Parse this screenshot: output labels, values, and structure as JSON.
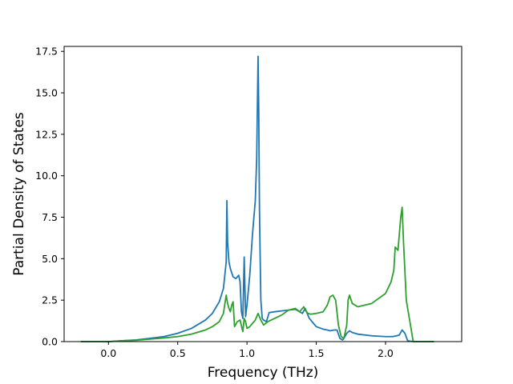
{
  "chart_data": {
    "type": "line",
    "title": "",
    "xlabel": "Frequency (THz)",
    "ylabel": "Partial Density of States",
    "xlim": [
      -0.32,
      2.55
    ],
    "ylim": [
      0,
      17.8
    ],
    "xticks": [
      0.0,
      0.5,
      1.0,
      1.5,
      2.0
    ],
    "xtick_labels": [
      "0.0",
      "0.5",
      "1.0",
      "1.5",
      "2.0"
    ],
    "yticks": [
      0.0,
      2.5,
      5.0,
      7.5,
      10.0,
      12.5,
      15.0,
      17.5
    ],
    "ytick_labels": [
      "0.0",
      "2.5",
      "5.0",
      "7.5",
      "10.0",
      "12.5",
      "15.0",
      "17.5"
    ],
    "grid": false,
    "legend": null,
    "series": [
      {
        "color": "#1f77b4",
        "x": [
          -0.2,
          0.0,
          0.1,
          0.2,
          0.3,
          0.4,
          0.5,
          0.6,
          0.7,
          0.75,
          0.8,
          0.83,
          0.85,
          0.855,
          0.86,
          0.87,
          0.88,
          0.9,
          0.92,
          0.94,
          0.95,
          0.96,
          0.97,
          0.98,
          0.99,
          1.0,
          1.02,
          1.04,
          1.06,
          1.07,
          1.08,
          1.085,
          1.09,
          1.1,
          1.11,
          1.12,
          1.14,
          1.16,
          1.2,
          1.25,
          1.3,
          1.35,
          1.38,
          1.4,
          1.42,
          1.45,
          1.5,
          1.55,
          1.58,
          1.6,
          1.63,
          1.65,
          1.67,
          1.69,
          1.7,
          1.72,
          1.74,
          1.76,
          1.8,
          1.9,
          2.0,
          2.05,
          2.08,
          2.1,
          2.12,
          2.14,
          2.16,
          2.2,
          2.35
        ],
        "y": [
          0.0,
          0.0,
          0.05,
          0.1,
          0.2,
          0.3,
          0.5,
          0.8,
          1.3,
          1.7,
          2.4,
          3.2,
          4.8,
          8.5,
          6.0,
          4.8,
          4.4,
          3.9,
          3.8,
          4.0,
          3.6,
          1.8,
          1.4,
          5.1,
          1.5,
          2.2,
          4.0,
          6.5,
          8.5,
          11.0,
          17.2,
          14.0,
          8.0,
          2.5,
          1.4,
          1.3,
          1.2,
          1.75,
          1.8,
          1.85,
          1.9,
          1.95,
          1.8,
          1.7,
          2.0,
          1.4,
          0.9,
          0.75,
          0.7,
          0.65,
          0.7,
          0.7,
          0.2,
          0.1,
          0.2,
          0.5,
          0.65,
          0.55,
          0.45,
          0.35,
          0.3,
          0.3,
          0.35,
          0.4,
          0.7,
          0.5,
          0.05,
          0.0,
          0.0
        ]
      },
      {
        "color": "#2ca02c",
        "x": [
          -0.2,
          0.0,
          0.1,
          0.2,
          0.3,
          0.4,
          0.5,
          0.6,
          0.7,
          0.75,
          0.8,
          0.83,
          0.85,
          0.86,
          0.87,
          0.88,
          0.89,
          0.9,
          0.91,
          0.93,
          0.95,
          0.97,
          0.98,
          0.99,
          1.0,
          1.02,
          1.04,
          1.06,
          1.08,
          1.1,
          1.12,
          1.15,
          1.2,
          1.25,
          1.3,
          1.35,
          1.38,
          1.4,
          1.41,
          1.42,
          1.44,
          1.46,
          1.5,
          1.55,
          1.58,
          1.6,
          1.62,
          1.64,
          1.66,
          1.68,
          1.7,
          1.72,
          1.73,
          1.74,
          1.76,
          1.8,
          1.9,
          2.0,
          2.04,
          2.06,
          2.07,
          2.09,
          2.11,
          2.12,
          2.13,
          2.15,
          2.2,
          2.35
        ],
        "y": [
          0.0,
          0.0,
          0.05,
          0.08,
          0.15,
          0.22,
          0.3,
          0.45,
          0.7,
          0.9,
          1.2,
          1.7,
          2.8,
          2.3,
          2.0,
          1.8,
          2.2,
          2.4,
          0.9,
          1.2,
          1.3,
          0.6,
          1.4,
          1.2,
          0.8,
          0.9,
          1.1,
          1.3,
          1.7,
          1.3,
          1.0,
          1.2,
          1.4,
          1.6,
          1.9,
          2.0,
          1.8,
          2.0,
          2.1,
          1.9,
          1.7,
          1.65,
          1.7,
          1.8,
          2.2,
          2.7,
          2.8,
          2.5,
          1.0,
          0.3,
          0.2,
          1.0,
          2.5,
          2.8,
          2.3,
          2.1,
          2.3,
          2.9,
          3.6,
          4.3,
          5.7,
          5.5,
          7.5,
          8.1,
          6.0,
          2.5,
          0.0,
          0.0
        ]
      }
    ]
  }
}
